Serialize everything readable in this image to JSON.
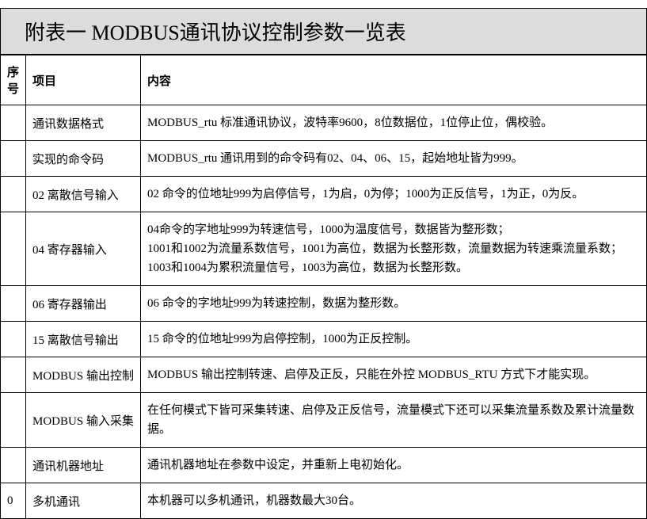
{
  "title": "附表一 MODBUS通讯协议控制参数一览表",
  "table": {
    "headers": {
      "seq": "序号",
      "item": "项目",
      "content": "内容"
    },
    "rows": [
      {
        "seq": "",
        "item": "通讯数据格式",
        "content": "MODBUS_rtu 标准通讯协议，波特率9600，8位数据位，1位停止位，偶校验。"
      },
      {
        "seq": "",
        "item": "实现的命令码",
        "content": "MODBUS_rtu 通讯用到的命令码有02、04、06、15，起始地址皆为999。"
      },
      {
        "seq": "",
        "item": "02 离散信号输入",
        "content": "02 命令的位地址999为启停信号，1为启，0为停；1000为正反信号，1为正，0为反。"
      },
      {
        "seq": "",
        "item": "04 寄存器输入",
        "content": "04命令的字地址999为转速信号，1000为温度信号，数据皆为整形数；\n1001和1002为流量系数信号，1001为高位，数据为长整形数，流量数据为转速乘流量系数；\n1003和1004为累积流量信号，1003为高位，数据为长整形数。"
      },
      {
        "seq": "",
        "item": "06 寄存器输出",
        "content": "06 命令的字地址999为转速控制，数据为整形数。"
      },
      {
        "seq": "",
        "item": "15 离散信号输出",
        "content": "15 命令的位地址999为启停控制，1000为正反控制。"
      },
      {
        "seq": "",
        "item": "MODBUS 输出控制",
        "content": "MODBUS 输出控制转速、启停及正反，只能在外控 MODBUS_RTU 方式下才能实现。"
      },
      {
        "seq": "",
        "item": "MODBUS 输入采集",
        "content": "在任何模式下皆可采集转速、启停及正反信号，流量模式下还可以采集流量系数及累计流量数据。"
      },
      {
        "seq": "",
        "item": "通讯机器地址",
        "content": "通讯机器地址在参数中设定，并重新上电初始化。"
      },
      {
        "seq": "0",
        "item": "多机通讯",
        "content": "本机器可以多机通讯，机器数最大30台。"
      }
    ]
  },
  "styling": {
    "title_bg": "#dcdcdc",
    "border_color": "#000000",
    "text_color": "#000000",
    "bg_color": "#ffffff",
    "title_fontsize": 26,
    "cell_fontsize": 15,
    "col_widths": {
      "seq": 30,
      "item": 145
    }
  }
}
